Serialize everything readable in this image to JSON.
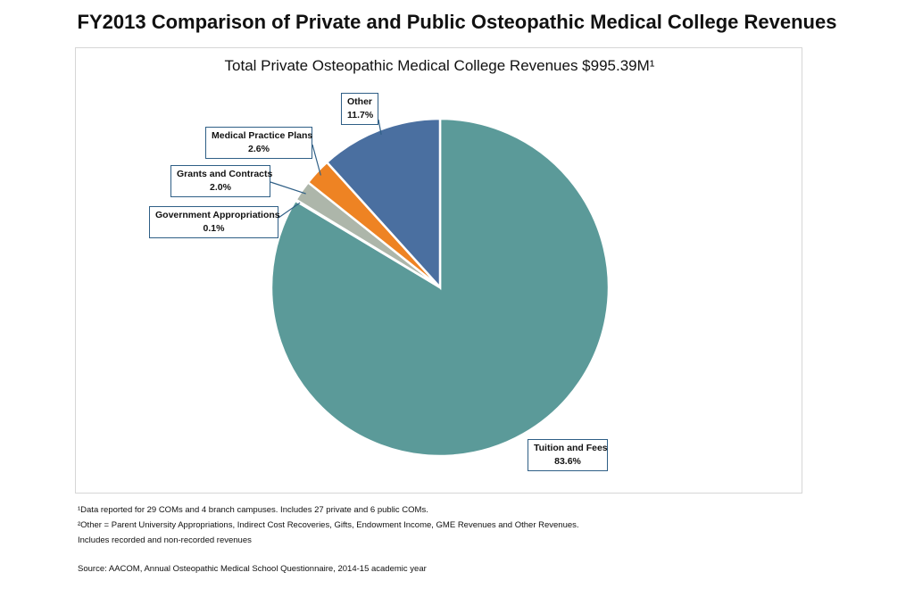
{
  "page": {
    "title": "FY2013 Comparison of Private and Public Osteopathic Medical College Revenues"
  },
  "chart_data": {
    "type": "pie",
    "title": "Total Private Osteopathic Medical College Revenues $995.39M¹",
    "slices": [
      {
        "label": "Tuition and Fees",
        "value": 83.6,
        "value_label": "83.6%",
        "color": "#5b9a99"
      },
      {
        "label": "Government Appropriations",
        "value": 0.1,
        "value_label": "0.1%",
        "color": "#ffffff"
      },
      {
        "label": "Grants and Contracts",
        "value": 2.0,
        "value_label": "2.0%",
        "color": "#adb6aa"
      },
      {
        "label": "Medical Practice Plans",
        "value": 2.6,
        "value_label": "2.6%",
        "color": "#ee8323"
      },
      {
        "label": "Other",
        "value": 11.7,
        "value_label": "11.7%",
        "color": "#4a6fa0"
      }
    ],
    "start_angle": "12 o'clock",
    "direction": "clockwise",
    "legend": "none (callout labels)"
  },
  "footnotes": [
    "¹Data reported for 29 COMs and 4 branch campuses. Includes 27 private and 6 public COMs.",
    "²Other = Parent University Appropriations, Indirect Cost Recoveries, Gifts, Endowment Income, GME Revenues and Other Revenues.",
    "Includes recorded and non-recorded revenues"
  ],
  "source": "Source: AACOM, Annual Osteopathic Medical School Questionnaire, 2014-15 academic year"
}
